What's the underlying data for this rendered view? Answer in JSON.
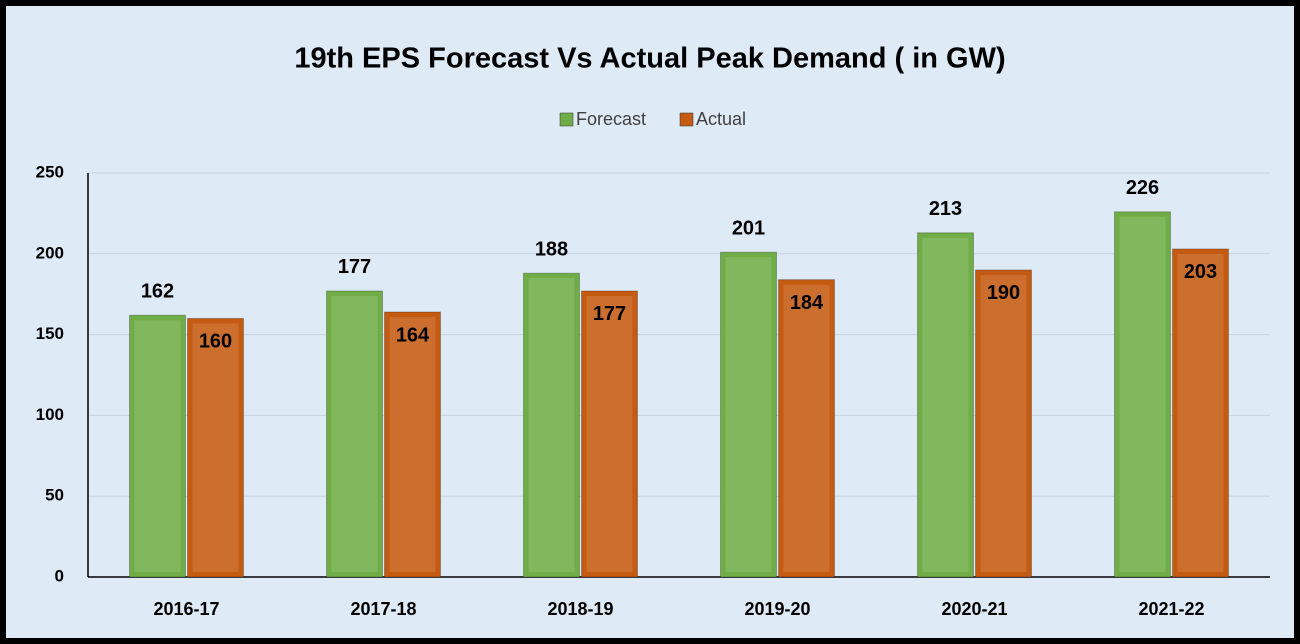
{
  "chart_data": {
    "type": "bar",
    "title": "19th EPS Forecast Vs Actual Peak Demand ( in GW)",
    "categories": [
      "2016-17",
      "2017-18",
      "2018-19",
      "2019-20",
      "2020-21",
      "2021-22"
    ],
    "series": [
      {
        "name": "Forecast",
        "color": "#70ad47",
        "values": [
          162,
          177,
          188,
          201,
          213,
          226
        ]
      },
      {
        "name": "Actual",
        "color": "#c55a11",
        "values": [
          160,
          164,
          177,
          184,
          190,
          203
        ]
      }
    ],
    "ylim": [
      0,
      250
    ],
    "yticks": [
      0,
      50,
      100,
      150,
      200,
      250
    ],
    "grid": true,
    "legend": "top"
  }
}
